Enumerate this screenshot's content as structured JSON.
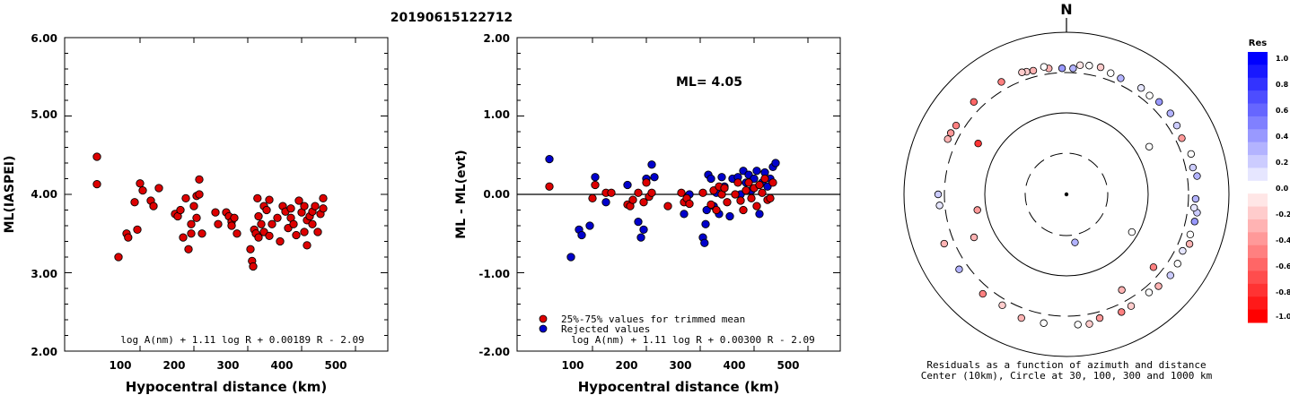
{
  "title": "20190615122712",
  "left_chart": {
    "ylabel": "ML(IASPEI)",
    "xlabel": "Hypocentral distance (km)",
    "yticks": [
      "6.00",
      "5.00",
      "4.00",
      "3.00",
      "2.00"
    ],
    "xticks": [
      "100",
      "200",
      "300",
      "400",
      "500"
    ],
    "formula": "log A(nm) + 1.11 log R + 0.00189 R - 2.09"
  },
  "middle_chart": {
    "ylabel": "ML - ML(evt)",
    "xlabel": "Hypocentral distance (km)",
    "yticks": [
      "2.00",
      "1.00",
      "0.00",
      "-1.00",
      "-2.00"
    ],
    "xticks": [
      "100",
      "200",
      "300",
      "400",
      "500"
    ],
    "ml_text": "ML= 4.05",
    "legend_red": "25%-75% values for trimmed mean",
    "legend_blue": "Rejected values",
    "formula": "log A(nm) + 1.11 log R + 0.00300 R - 2.09"
  },
  "polar": {
    "north": "N",
    "caption1": "Residuals as a function of azimuth and distance",
    "caption2": "Center (10km), Circle at 30, 100, 300 and 1000 km"
  },
  "colorbar": {
    "title": "Res",
    "labels": [
      "1.0",
      "0.8",
      "0.6",
      "0.4",
      "0.2",
      "0.0",
      "-0.2",
      "-0.4",
      "-0.6",
      "-0.8",
      "-1.0"
    ]
  },
  "colors": {
    "accepted": "#dd0000",
    "rejected": "#0000cc",
    "positive": "#0000ff",
    "negative": "#ff0000"
  },
  "chart_data": [
    {
      "type": "scatter",
      "title": "20190615122712",
      "xlabel": "Hypocentral distance (km)",
      "ylabel": "ML(IASPEI)",
      "xlim": [
        0,
        600
      ],
      "ylim": [
        2.0,
        6.0
      ],
      "series": [
        {
          "x": [
            20,
            20,
            60,
            75,
            78,
            90,
            95,
            100,
            105,
            120,
            125,
            135,
            165,
            170,
            175,
            180,
            185,
            190,
            195,
            195,
            200,
            205,
            205,
            210,
            210,
            215,
            240,
            245,
            260,
            265,
            270,
            270,
            275,
            280,
            305,
            308,
            310,
            312,
            315,
            318,
            320,
            320,
            325,
            330,
            330,
            335,
            340,
            340,
            345,
            355,
            360,
            365,
            370,
            375,
            380,
            380,
            385,
            390,
            395,
            400,
            405,
            405,
            410,
            410,
            415,
            420,
            420,
            425,
            430,
            435,
            440,
            440
          ],
          "y": [
            4.48,
            4.13,
            3.2,
            3.5,
            3.45,
            3.9,
            3.55,
            4.14,
            4.05,
            3.92,
            3.85,
            4.08,
            3.75,
            3.72,
            3.8,
            3.45,
            3.95,
            3.3,
            3.62,
            3.5,
            3.85,
            3.98,
            3.7,
            4.19,
            4.0,
            3.5,
            3.77,
            3.62,
            3.77,
            3.72,
            3.65,
            3.6,
            3.7,
            3.5,
            3.3,
            3.15,
            3.08,
            3.55,
            3.5,
            3.95,
            3.72,
            3.45,
            3.62,
            3.85,
            3.52,
            3.8,
            3.47,
            3.93,
            3.62,
            3.7,
            3.4,
            3.85,
            3.78,
            3.57,
            3.82,
            3.7,
            3.62,
            3.48,
            3.92,
            3.77,
            3.52,
            3.85,
            3.35,
            3.67,
            3.72,
            3.78,
            3.62,
            3.85,
            3.52,
            3.75,
            3.82,
            3.95
          ]
        }
      ]
    },
    {
      "type": "scatter",
      "title": "ML= 4.05",
      "xlabel": "Hypocentral distance (km)",
      "ylabel": "ML - ML(evt)",
      "xlim": [
        0,
        600
      ],
      "ylim": [
        -2.0,
        2.0
      ],
      "series": [
        {
          "name": "25%-75% values for trimmed mean",
          "x": [
            20,
            100,
            105,
            125,
            135,
            165,
            170,
            175,
            185,
            195,
            200,
            205,
            210,
            240,
            265,
            270,
            275,
            280,
            305,
            320,
            325,
            330,
            335,
            340,
            345,
            350,
            365,
            370,
            375,
            380,
            385,
            390,
            395,
            400,
            405,
            410,
            415,
            420,
            425,
            430,
            435
          ],
          "y": [
            0.1,
            -0.05,
            0.12,
            0.02,
            0.02,
            -0.13,
            -0.15,
            -0.07,
            0.02,
            -0.1,
            0.15,
            -0.03,
            0.02,
            -0.15,
            0.02,
            -0.1,
            -0.05,
            -0.12,
            0.02,
            -0.13,
            0.05,
            -0.2,
            0.1,
            0.0,
            0.08,
            -0.1,
            0.0,
            0.15,
            -0.08,
            -0.2,
            0.05,
            0.15,
            -0.05,
            0.08,
            -0.15,
            0.12,
            0.02,
            0.2,
            -0.07,
            -0.05,
            0.15
          ]
        },
        {
          "name": "Rejected values",
          "x": [
            20,
            60,
            75,
            80,
            95,
            105,
            125,
            165,
            185,
            190,
            195,
            200,
            210,
            215,
            270,
            280,
            305,
            308,
            310,
            312,
            315,
            320,
            325,
            330,
            335,
            340,
            345,
            355,
            360,
            370,
            375,
            380,
            385,
            390,
            395,
            400,
            405,
            410,
            415,
            420,
            425,
            430,
            435,
            440
          ],
          "y": [
            0.45,
            -0.8,
            -0.45,
            -0.52,
            -0.4,
            0.22,
            -0.1,
            0.12,
            -0.35,
            -0.55,
            -0.45,
            0.2,
            0.38,
            0.22,
            -0.25,
            0.0,
            -0.55,
            -0.62,
            -0.38,
            -0.2,
            0.25,
            0.2,
            -0.15,
            0.02,
            -0.25,
            0.22,
            0.1,
            -0.28,
            0.2,
            0.22,
            0.0,
            0.3,
            0.15,
            0.25,
            0.05,
            0.2,
            0.3,
            -0.25,
            0.15,
            0.28,
            0.1,
            0.2,
            0.35,
            0.4
          ]
        }
      ]
    },
    {
      "type": "scatter",
      "title": "Residuals as a function of azimuth and distance",
      "xlabel": "azimuth (deg)",
      "ylabel": "distance (km)",
      "series": [
        {
          "name": "stations",
          "azimuth": [
            3,
            358,
            6,
            -8,
            -18,
            -30,
            -45,
            -58,
            -62,
            -65,
            -90,
            -95,
            -112,
            -125,
            -140,
            -150,
            -160,
            -170,
            175,
            170,
            165,
            155,
            150,
            140,
            135,
            128,
            122,
            116,
            112,
            108,
            102,
            98,
            96,
            92,
            82,
            78,
            72,
            64,
            58,
            52,
            45,
            40,
            35,
            25,
            20,
            15,
            10,
            -10,
            -15,
            -20,
            60,
            120,
            170,
            -60,
            -100,
            -115,
            150,
            130
          ],
          "distance_km": [
            360,
            360,
            400,
            370,
            390,
            400,
            410,
            400,
            410,
            410,
            380,
            370,
            420,
            410,
            400,
            380,
            420,
            410,
            410,
            420,
            380,
            400,
            390,
            380,
            400,
            420,
            410,
            390,
            430,
            400,
            410,
            420,
            380,
            390,
            420,
            390,
            410,
            380,
            400,
            420,
            410,
            390,
            400,
            380,
            390,
            420,
            410,
            395,
            380,
            400,
            150,
            85,
            40,
            180,
            130,
            180,
            230,
            250
          ],
          "residual": [
            0.3,
            0.4,
            -0.1,
            -0.3,
            -0.2,
            -0.5,
            -0.6,
            -0.5,
            -0.4,
            -0.3,
            0.2,
            0.1,
            -0.3,
            0.3,
            -0.5,
            -0.2,
            -0.3,
            0.0,
            0.0,
            -0.2,
            -0.4,
            -0.5,
            -0.2,
            0.0,
            -0.3,
            0.2,
            0.0,
            0.1,
            -0.3,
            0.0,
            0.4,
            0.2,
            0.1,
            0.3,
            0.3,
            0.2,
            0.0,
            -0.4,
            0.2,
            0.3,
            0.4,
            0.0,
            0.1,
            0.3,
            0.0,
            -0.2,
            0.0,
            0.0,
            -0.3,
            -0.2,
            0.0,
            0.0,
            0.3,
            -0.8,
            -0.4,
            -0.3,
            -0.3,
            -0.5
          ]
        }
      ]
    }
  ]
}
